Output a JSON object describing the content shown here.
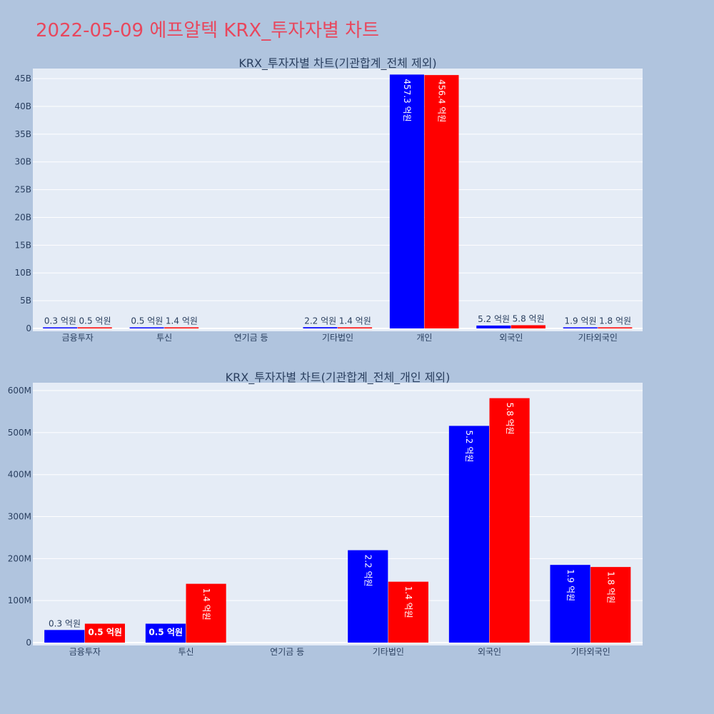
{
  "page": {
    "title": "2022-05-09 에프알텍 KRX_투자자별 차트"
  },
  "colors": {
    "background": "#b0c4de",
    "plot_bg": "#e5ecf6",
    "title": "#e8475d",
    "text": "#2a3f5f",
    "buy": "#0000ff",
    "sell": "#ff0000"
  },
  "chart_data": [
    {
      "type": "bar",
      "title": "KRX_투자자별 차트(기관합계_전체 제외)",
      "categories": [
        "금융투자",
        "투신",
        "연기금 등",
        "기타법인",
        "개인",
        "외국인",
        "기타외국인"
      ],
      "series": [
        {
          "color": "#0000ff",
          "values": [
            30000000,
            50000000,
            0,
            220000000,
            45730000000,
            520000000,
            190000000
          ],
          "labels": [
            "0.3 억원",
            "0.5 억원",
            "",
            "2.2 억원",
            "457.3 억원",
            "5.2 억원",
            "1.9 억원"
          ]
        },
        {
          "color": "#ff0000",
          "values": [
            50000000,
            140000000,
            0,
            140000000,
            45640000000,
            580000000,
            180000000
          ],
          "labels": [
            "0.5 억원",
            "1.4 억원",
            "",
            "1.4 억원",
            "456.4 억원",
            "5.8 억원",
            "1.8 억원"
          ]
        }
      ],
      "yticks": [
        0,
        5000000000,
        10000000000,
        15000000000,
        20000000000,
        25000000000,
        30000000000,
        35000000000,
        40000000000,
        45000000000
      ],
      "ytick_labels": [
        "0",
        "5B",
        "10B",
        "15B",
        "20B",
        "25B",
        "30B",
        "35B",
        "40B",
        "45B"
      ],
      "ylim": [
        0,
        46300000000
      ],
      "grid": true
    },
    {
      "type": "bar",
      "title": "KRX_투자자별 차트(기관합계_전체_개인 제외)",
      "categories": [
        "금융투자",
        "투신",
        "연기금 등",
        "기타법인",
        "외국인",
        "기타외국인"
      ],
      "series": [
        {
          "color": "#0000ff",
          "values": [
            30000000,
            45000000,
            0,
            220000000,
            516000000,
            185000000
          ],
          "labels": [
            "0.3 억원",
            "0.5 억원",
            "",
            "2.2 억원",
            "5.2 억원",
            "1.9 억원"
          ]
        },
        {
          "color": "#ff0000",
          "values": [
            45000000,
            140000000,
            0,
            145000000,
            582000000,
            180000000
          ],
          "labels": [
            "0.5 억원",
            "1.4 억원",
            "",
            "1.4 억원",
            "5.8 억원",
            "1.8 억원"
          ]
        }
      ],
      "yticks": [
        0,
        100000000,
        200000000,
        300000000,
        400000000,
        500000000,
        600000000
      ],
      "ytick_labels": [
        "0",
        "100M",
        "200M",
        "300M",
        "400M",
        "500M",
        "600M"
      ],
      "ylim": [
        0,
        612000000
      ],
      "grid": true
    }
  ]
}
